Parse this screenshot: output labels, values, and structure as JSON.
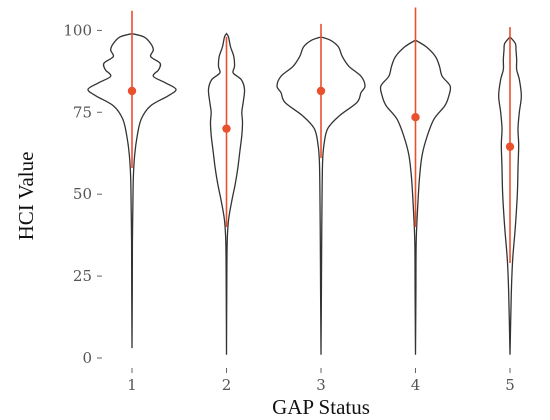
{
  "chart_data": {
    "type": "violin",
    "title": "",
    "xlabel": "GAP Status",
    "ylabel": "HCI Value",
    "ylim": [
      0,
      105
    ],
    "yticks": [
      0,
      25,
      50,
      75,
      100
    ],
    "categories": [
      "1",
      "2",
      "3",
      "4",
      "5"
    ],
    "mean": [
      81.5,
      70,
      81.5,
      73.5,
      64.5
    ],
    "interval": [
      [
        58,
        106
      ],
      [
        40,
        98
      ],
      [
        61,
        102
      ],
      [
        40,
        107
      ],
      [
        29,
        101
      ]
    ],
    "range": [
      [
        3,
        99
      ],
      [
        1,
        99
      ],
      [
        1,
        98
      ],
      [
        1,
        97
      ],
      [
        1,
        98
      ]
    ],
    "density_profiles": [
      [
        [
          3,
          0.1
        ],
        [
          20,
          0.2
        ],
        [
          35,
          0.3
        ],
        [
          45,
          0.6
        ],
        [
          55,
          1
        ],
        [
          62,
          2
        ],
        [
          68,
          4
        ],
        [
          73,
          7
        ],
        [
          77,
          14
        ],
        [
          80,
          27
        ],
        [
          82,
          33
        ],
        [
          84,
          25
        ],
        [
          86,
          16
        ],
        [
          88,
          20
        ],
        [
          90,
          21
        ],
        [
          92,
          14
        ],
        [
          94,
          16
        ],
        [
          96,
          14
        ],
        [
          98,
          9
        ],
        [
          99,
          0
        ]
      ],
      [
        [
          1,
          0.1
        ],
        [
          20,
          0.2
        ],
        [
          35,
          0.5
        ],
        [
          42,
          1.5
        ],
        [
          48,
          4
        ],
        [
          53,
          6.5
        ],
        [
          58,
          8.5
        ],
        [
          63,
          10
        ],
        [
          68,
          11.5
        ],
        [
          72,
          12
        ],
        [
          75,
          11.5
        ],
        [
          78,
          12.5
        ],
        [
          82,
          13.5
        ],
        [
          85,
          11
        ],
        [
          87,
          5
        ],
        [
          89,
          6
        ],
        [
          92,
          5.5
        ],
        [
          95,
          3
        ],
        [
          98,
          1.5
        ],
        [
          99,
          0
        ]
      ],
      [
        [
          1,
          0.1
        ],
        [
          20,
          0.3
        ],
        [
          35,
          0.5
        ],
        [
          50,
          0.8
        ],
        [
          60,
          1.2
        ],
        [
          65,
          2.2
        ],
        [
          70,
          5
        ],
        [
          74,
          14
        ],
        [
          78,
          27
        ],
        [
          81,
          30
        ],
        [
          83,
          33
        ],
        [
          86,
          30
        ],
        [
          89,
          21
        ],
        [
          92,
          16
        ],
        [
          95,
          13
        ],
        [
          97,
          7
        ],
        [
          98,
          0
        ]
      ],
      [
        [
          1,
          0.1
        ],
        [
          20,
          0.3
        ],
        [
          35,
          0.5
        ],
        [
          45,
          1.5
        ],
        [
          55,
          3
        ],
        [
          62,
          5
        ],
        [
          68,
          9
        ],
        [
          73,
          14
        ],
        [
          77,
          22
        ],
        [
          80,
          25
        ],
        [
          83,
          26
        ],
        [
          86,
          20
        ],
        [
          89,
          18
        ],
        [
          92,
          15
        ],
        [
          95,
          8
        ],
        [
          97,
          0
        ]
      ],
      [
        [
          1,
          0.1
        ],
        [
          20,
          1
        ],
        [
          30,
          2
        ],
        [
          40,
          4
        ],
        [
          50,
          5.5
        ],
        [
          58,
          6
        ],
        [
          65,
          6.5
        ],
        [
          70,
          6
        ],
        [
          75,
          7
        ],
        [
          80,
          8.5
        ],
        [
          85,
          7
        ],
        [
          88,
          5
        ],
        [
          91,
          5
        ],
        [
          94,
          4.5
        ],
        [
          96,
          4
        ],
        [
          98,
          0
        ]
      ]
    ],
    "colors": {
      "violin_outline": "#333333",
      "mean_and_interval": "#E8502E"
    },
    "grid": false,
    "legend": "none"
  }
}
